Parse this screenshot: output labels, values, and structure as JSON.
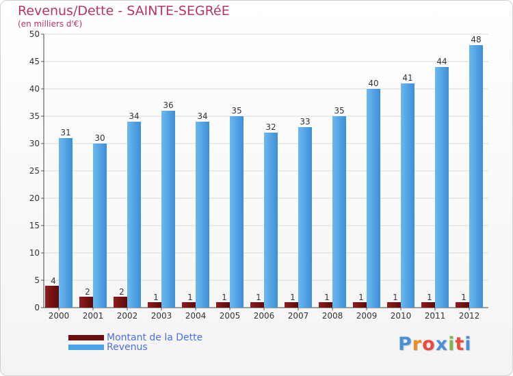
{
  "chart_data": {
    "type": "bar",
    "title": "Revenus/Dette - SAINTE-SEGRéE",
    "subtitle": "(en milliers d'€)",
    "categories": [
      "2000",
      "2001",
      "2002",
      "2003",
      "2004",
      "2005",
      "2006",
      "2007",
      "2008",
      "2009",
      "2010",
      "2011",
      "2012"
    ],
    "series": [
      {
        "name": "Montant de la Dette",
        "color": "#7a1616",
        "values": [
          4,
          2,
          2,
          1,
          1,
          1,
          1,
          1,
          1,
          1,
          1,
          1,
          1
        ]
      },
      {
        "name": "Revenus",
        "color": "#4aa3e6",
        "values": [
          31,
          30,
          34,
          36,
          34,
          35,
          32,
          33,
          35,
          40,
          41,
          44,
          48
        ]
      }
    ],
    "ylim": [
      0,
      50
    ],
    "yticks": [
      0,
      5,
      10,
      15,
      20,
      25,
      30,
      35,
      40,
      45,
      50
    ],
    "grid": true,
    "xlabel": "",
    "ylabel": ""
  },
  "legend": {
    "debt_label": "Montant de la Dette",
    "revenue_label": "Revenus"
  },
  "logo": {
    "text": "Proxiti",
    "letter_colors": [
      "#4a90d9",
      "#f08a1c",
      "#e94b3c",
      "#4a90d9",
      "#7ab648",
      "#e94b3c",
      "#4a90d9"
    ]
  }
}
